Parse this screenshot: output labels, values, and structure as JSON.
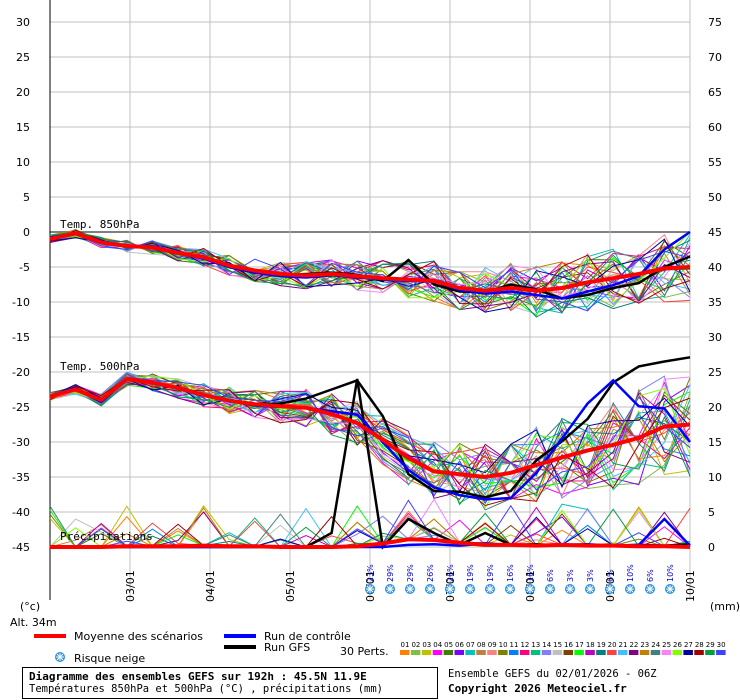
{
  "chart_data": {
    "type": "line",
    "title": "Diagramme des ensembles GEFS sur 192h : 45.5N 11.9E",
    "subtitle": "Températures 850hPa et 500hPa (°C) , précipitations (mm)",
    "left_unit": "(°c)",
    "right_unit": "(mm)",
    "altitude": "Alt. 34m",
    "left_ticks": [
      30,
      25,
      20,
      15,
      10,
      5,
      0,
      -5,
      -10,
      -15,
      -20,
      -25,
      -30,
      -35,
      -40,
      -45
    ],
    "right_ticks": [
      75,
      70,
      65,
      60,
      55,
      50,
      45,
      40,
      35,
      30,
      25,
      20,
      15,
      10,
      5,
      0
    ],
    "ylim_temp": [
      -45,
      30
    ],
    "ylim_precip": [
      0,
      75
    ],
    "date_ticks": [
      "03/01",
      "04/01",
      "05/01",
      "06/01",
      "07/01",
      "08/01",
      "09/01",
      "10/01"
    ],
    "panel_labels": {
      "t850": "Temp. 850hPa",
      "t500": "Temp. 500hPa",
      "precip": "Précipitations"
    },
    "snow_risk": [
      "23%",
      "29%",
      "29%",
      "26%",
      "26%",
      "19%",
      "19%",
      "16%",
      "16%",
      "6%",
      "3%",
      "3%",
      "6%",
      "10%",
      "6%",
      "10%"
    ],
    "t850": {
      "mean": [
        -1,
        -0.2,
        -1.5,
        -2,
        -2.2,
        -3,
        -3.6,
        -4.8,
        -5.5,
        -6,
        -6.2,
        -6,
        -6.3,
        -6.6,
        -6.8,
        -7,
        -8,
        -8.4,
        -8,
        -8.4,
        -8,
        -7.2,
        -6.6,
        -6,
        -5.2,
        -5
      ],
      "control": [
        -0.8,
        -0.2,
        -1.3,
        -2,
        -2,
        -3,
        -3.8,
        -5,
        -5.8,
        -6.3,
        -6.5,
        -6.2,
        -6.5,
        -6.8,
        -7,
        -7,
        -8.3,
        -8.8,
        -8.5,
        -9,
        -9.5,
        -8.5,
        -7.6,
        -6.3,
        -2.5,
        0
      ],
      "gfs": [
        -1,
        -0.3,
        -1.6,
        -2,
        -2.2,
        -3.1,
        -3.7,
        -5,
        -5.8,
        -6.2,
        -6,
        -5.8,
        -6.1,
        -7,
        -4,
        -7.5,
        -8.5,
        -8.6,
        -7.5,
        -8.2,
        -9.5,
        -9,
        -8,
        -7.3,
        -5,
        -3.5
      ]
    },
    "t500": {
      "mean": [
        -23.5,
        -22.5,
        -24,
        -21,
        -21.5,
        -22.3,
        -23.3,
        -24.1,
        -24.6,
        -24.9,
        -25.1,
        -26,
        -27.3,
        -29.7,
        -32.3,
        -34.2,
        -34.6,
        -35,
        -34.4,
        -33.3,
        -32.2,
        -31.2,
        -30.4,
        -29.4,
        -27.8,
        -27.5
      ],
      "control": [
        -23.5,
        -22.3,
        -24.3,
        -21,
        -21.5,
        -22.4,
        -23.4,
        -24.1,
        -24.8,
        -25,
        -25.1,
        -25.6,
        -26.1,
        -30,
        -34,
        -36.5,
        -37.6,
        -38.2,
        -38,
        -34.4,
        -29.5,
        -24.5,
        -21.2,
        -24.9,
        -25.2,
        -30
      ],
      "gfs": [
        -23.5,
        -22.5,
        -24,
        -21,
        -21.6,
        -22.4,
        -23.2,
        -24.2,
        -24.6,
        -24.5,
        -23.8,
        -22.5,
        -21.2,
        -26.3,
        -34.6,
        -37,
        -37.1,
        -37.9,
        -37,
        -32.6,
        -29.9,
        -26.7,
        -21.5,
        -19.2,
        -18.5,
        -17.9
      ]
    },
    "precip": {
      "mean": [
        0,
        0,
        0,
        0.1,
        0.1,
        0.1,
        0.2,
        0.1,
        0.1,
        0,
        0,
        0,
        0.1,
        0.5,
        1.1,
        1,
        0.6,
        0.3,
        0.3,
        0.2,
        0.3,
        0.2,
        0.2,
        0.1,
        0.1,
        0
      ],
      "control": [
        0,
        0,
        0,
        0,
        0,
        0,
        0,
        0,
        0,
        0,
        0,
        0,
        0,
        0,
        0.3,
        0.4,
        0.2,
        0.5,
        0.3,
        0.2,
        0.3,
        0.4,
        0.2,
        0.3,
        4,
        0.2
      ],
      "gfs": [
        0,
        0,
        0,
        0,
        0,
        0,
        0,
        0,
        0,
        0,
        0,
        2,
        24,
        0,
        4,
        2,
        0.3,
        2,
        0.3,
        0.4,
        0.2,
        0.3,
        0.2,
        0.3,
        0.2,
        0.4
      ]
    },
    "legend": {
      "mean": "Moyenne des scénarios",
      "control": "Run de contrôle",
      "gfs": "Run GFS",
      "snow": "Risque neige",
      "perts_label": "30 Perts.",
      "perts": [
        "01",
        "02",
        "03",
        "04",
        "05",
        "06",
        "07",
        "08",
        "09",
        "10",
        "11",
        "12",
        "13",
        "14",
        "15",
        "16",
        "17",
        "18",
        "19",
        "20",
        "21",
        "22",
        "23",
        "24",
        "25",
        "26",
        "27",
        "28",
        "29",
        "30"
      ]
    },
    "colors": {
      "mean": "#ff0000",
      "control": "#0000ff",
      "gfs": "#000000",
      "grid": "#c0c0c0",
      "zero": "#808080",
      "snow": "#2b8fd8",
      "perts": [
        "#ff8000",
        "#80c040",
        "#c0c000",
        "#ff00ff",
        "#408000",
        "#8000ff",
        "#00c0c0",
        "#c08040",
        "#ff8080",
        "#808000",
        "#0080ff",
        "#ff0080",
        "#00c080",
        "#8080ff",
        "#c0c0c0",
        "#804000",
        "#00ff00",
        "#c000c0",
        "#008080",
        "#ff4040",
        "#40c0ff",
        "#800080",
        "#c08000",
        "#408080",
        "#ff80ff",
        "#80ff00",
        "#0000a0",
        "#a00000",
        "#00a040",
        "#4040ff"
      ]
    }
  },
  "footer": {
    "title": "Diagramme des ensembles GEFS sur 192h : 45.5N 11.9E",
    "subtitle": "Températures 850hPa et 500hPa (°C) , précipitations (mm)",
    "run_info": "Ensemble GEFS du 02/01/2026 - 06Z",
    "copyright": "Copyright 2026 Meteociel.fr"
  }
}
